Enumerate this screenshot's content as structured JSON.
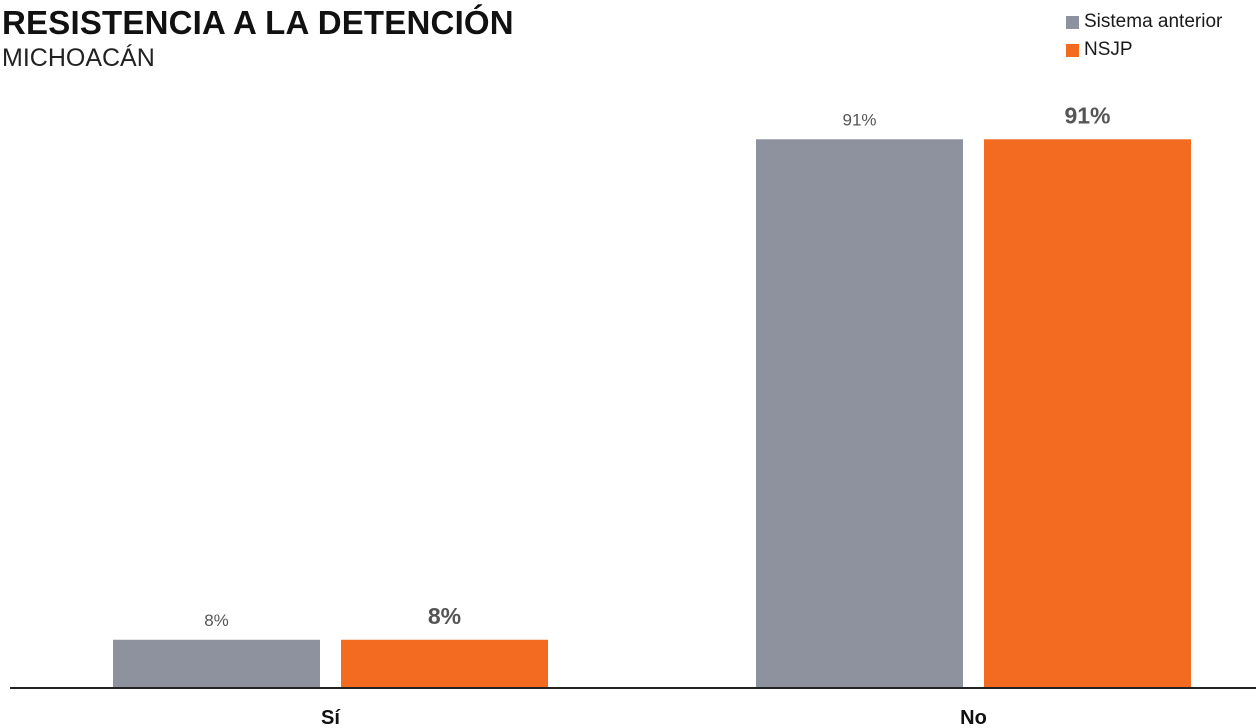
{
  "title": "RESISTENCIA A LA DETENCIÓN",
  "subtitle": "MICHOACÁN",
  "colors": {
    "series_1": "#8e929e",
    "series_2": "#f26b21",
    "axis": "#222222",
    "label_light": "#555555",
    "label_bold": "#555555",
    "category_label": "#111111"
  },
  "legend": {
    "position": "top-right",
    "items": [
      {
        "label": "Sistema anterior",
        "color": "#8e929e"
      },
      {
        "label": "NSJP",
        "color": "#f26b21"
      }
    ]
  },
  "chart_data": {
    "type": "bar",
    "title": "RESISTENCIA A LA DETENCIÓN",
    "subtitle": "MICHOACÁN",
    "categories": [
      "Sí",
      "No"
    ],
    "series": [
      {
        "name": "Sistema anterior",
        "values": [
          8,
          91
        ],
        "labels": [
          "8%",
          "91%"
        ]
      },
      {
        "name": "NSJP",
        "values": [
          8,
          91
        ],
        "labels": [
          "8%",
          "91%"
        ]
      }
    ],
    "ylim": [
      0,
      100
    ],
    "grid": false,
    "legend_position": "top-right"
  }
}
